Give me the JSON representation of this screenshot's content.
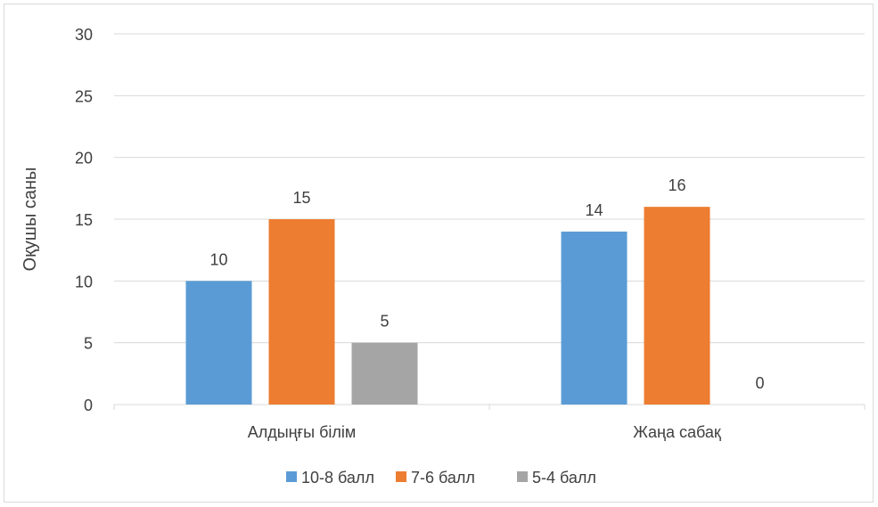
{
  "chart_data": {
    "type": "bar",
    "title": "",
    "xlabel": "",
    "ylabel": "Оқушы саны",
    "ylim": [
      0,
      30
    ],
    "yticks": [
      0,
      5,
      10,
      15,
      20,
      25,
      30
    ],
    "categories": [
      "Алдыңғы білім",
      "Жаңа сабақ"
    ],
    "series": [
      {
        "name": "10-8 балл",
        "values": [
          10,
          14
        ],
        "color": "#5b9bd5"
      },
      {
        "name": "7-6 балл",
        "values": [
          15,
          16
        ],
        "color": "#ed7d31"
      },
      {
        "name": "5-4 балл",
        "values": [
          5,
          0
        ],
        "color": "#a5a5a5"
      }
    ],
    "grid": true,
    "data_labels": true,
    "legend_position": "bottom"
  }
}
